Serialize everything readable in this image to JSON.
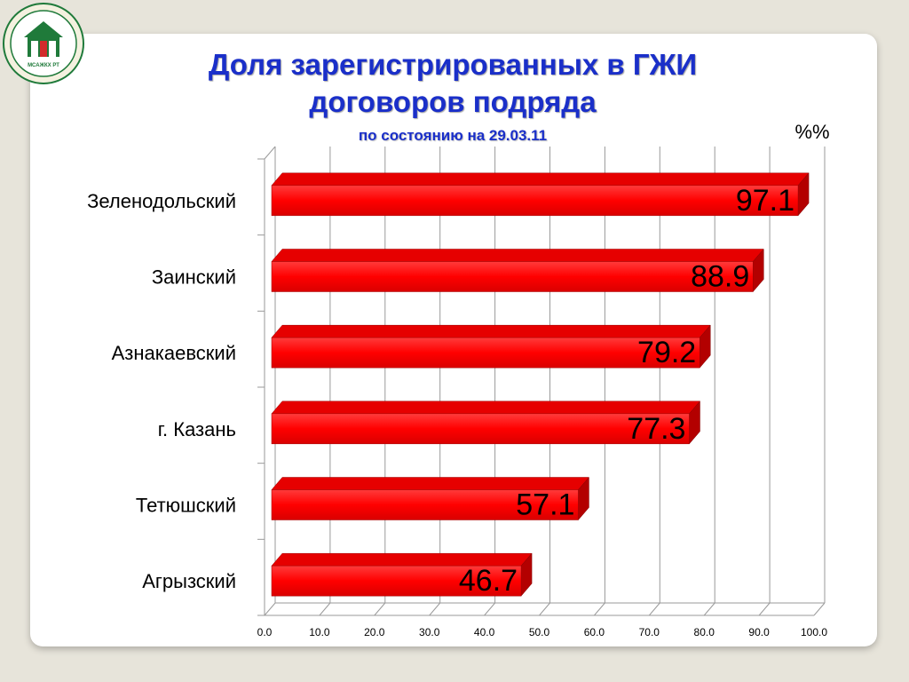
{
  "title_line1": "Доля зарегистрированных в ГЖИ",
  "title_line2": "договоров подряда",
  "subtitle": "по состоянию на 29.03.11",
  "logo_text": "МСАЖКХ РТ",
  "unit": "%%",
  "colors": {
    "bar": "#ff0000",
    "bar_dark": "#b30000",
    "title": "#1a2fc9"
  },
  "chart_data": {
    "type": "bar",
    "orientation": "horizontal",
    "categories": [
      "Зеленодольский",
      "Заинский",
      "Азнакаевский",
      "г. Казань",
      "Тетюшский",
      "Агрызский"
    ],
    "values": [
      97.1,
      88.9,
      79.2,
      77.3,
      57.1,
      46.7
    ],
    "data_labels": [
      "97.1",
      "88.9",
      "79.2",
      "77.3",
      "57.1",
      "46.7"
    ],
    "x_ticks": [
      "0.0",
      "10.0",
      "20.0",
      "30.0",
      "40.0",
      "50.0",
      "60.0",
      "70.0",
      "80.0",
      "90.0",
      "100.0"
    ],
    "xlim": [
      0,
      100
    ],
    "grid": true,
    "style": "3d"
  }
}
